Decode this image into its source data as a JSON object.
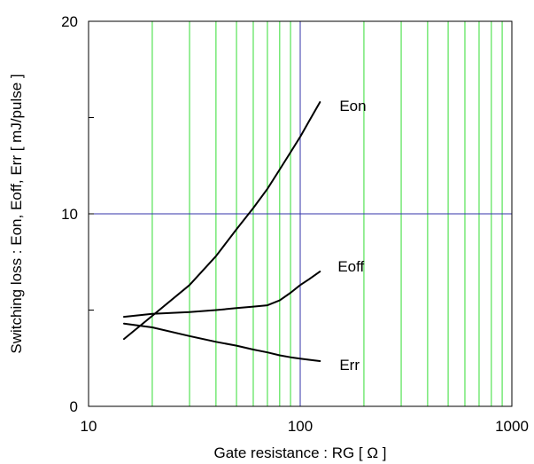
{
  "chart_data": {
    "type": "line",
    "title": "",
    "xlabel": "Gate resistance : RG [ Ω ]",
    "ylabel": "Switching loss : Eon, Eoff, Err [ mJ/pulse ]",
    "xscale": "log",
    "xlim": [
      10,
      1000
    ],
    "ylim": [
      0,
      20
    ],
    "x_ticks": [
      10,
      100,
      1000
    ],
    "x_tick_labels": [
      "10",
      "100",
      "1000"
    ],
    "y_ticks": [
      0,
      10,
      20
    ],
    "y_tick_labels": [
      "0",
      "10",
      "20"
    ],
    "y_minor_ticks": [
      5,
      15
    ],
    "grid": {
      "x_minor": [
        20,
        30,
        40,
        50,
        60,
        70,
        80,
        90,
        200,
        300,
        400,
        500,
        600,
        700,
        800,
        900
      ],
      "x_major": [
        100
      ],
      "y_major": [
        10
      ],
      "minor_color": "#33dd33",
      "major_color": "#3333aa"
    },
    "series": [
      {
        "name": "Eon",
        "x": [
          14.7,
          20,
          30,
          40,
          50,
          60,
          70,
          80,
          90,
          100,
          110,
          124
        ],
        "y": [
          3.5,
          4.7,
          6.3,
          7.8,
          9.2,
          10.3,
          11.3,
          12.3,
          13.2,
          14.0,
          14.8,
          15.8
        ]
      },
      {
        "name": "Eoff",
        "x": [
          14.7,
          20,
          30,
          40,
          50,
          60,
          70,
          80,
          90,
          100,
          110,
          124
        ],
        "y": [
          4.65,
          4.8,
          4.9,
          5.0,
          5.1,
          5.18,
          5.25,
          5.5,
          5.9,
          6.3,
          6.6,
          7.0
        ]
      },
      {
        "name": "Err",
        "x": [
          14.7,
          20,
          30,
          40,
          50,
          60,
          70,
          80,
          90,
          100,
          110,
          124
        ],
        "y": [
          4.3,
          4.1,
          3.65,
          3.35,
          3.15,
          2.95,
          2.8,
          2.65,
          2.55,
          2.48,
          2.42,
          2.35
        ]
      }
    ],
    "annotations": [
      {
        "text": "Eon",
        "series": "Eon"
      },
      {
        "text": "Eoff",
        "series": "Eoff"
      },
      {
        "text": "Err",
        "series": "Err"
      }
    ]
  }
}
